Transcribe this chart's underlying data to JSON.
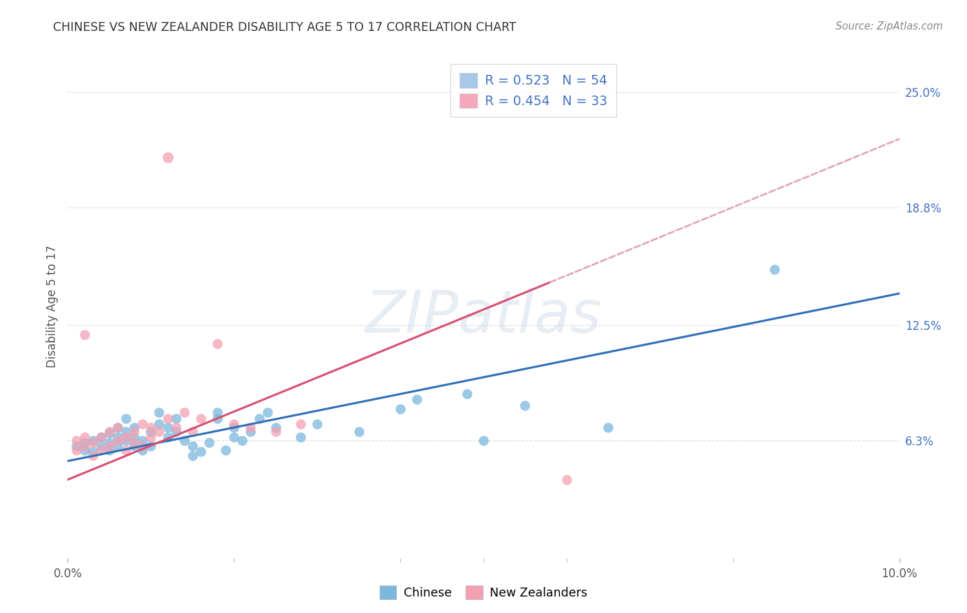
{
  "title": "CHINESE VS NEW ZEALANDER DISABILITY AGE 5 TO 17 CORRELATION CHART",
  "source": "Source: ZipAtlas.com",
  "ylabel": "Disability Age 5 to 17",
  "xlim": [
    0.0,
    0.1
  ],
  "ylim": [
    0.0,
    0.27
  ],
  "ytick_labels_right": [
    "25.0%",
    "18.8%",
    "12.5%",
    "6.3%"
  ],
  "ytick_vals_right": [
    0.25,
    0.188,
    0.125,
    0.063
  ],
  "legend_items": [
    {
      "label_r": "R = 0.523",
      "label_n": "N = 54",
      "color": "#a8c8e8"
    },
    {
      "label_r": "R = 0.454",
      "label_n": "N = 33",
      "color": "#f4a8bc"
    }
  ],
  "watermark": "ZIPatlas",
  "chinese_color": "#7ab8de",
  "nz_color": "#f4a0b0",
  "chinese_line_color": "#3070b8",
  "nz_line_color": "#d85070",
  "nz_dashed_color": "#e0a0b0",
  "grid_color": "#dddddd",
  "background_color": "#ffffff",
  "chinese_scatter": [
    [
      0.001,
      0.06
    ],
    [
      0.002,
      0.058
    ],
    [
      0.002,
      0.062
    ],
    [
      0.003,
      0.057
    ],
    [
      0.003,
      0.063
    ],
    [
      0.004,
      0.06
    ],
    [
      0.004,
      0.065
    ],
    [
      0.005,
      0.058
    ],
    [
      0.005,
      0.062
    ],
    [
      0.005,
      0.067
    ],
    [
      0.006,
      0.06
    ],
    [
      0.006,
      0.065
    ],
    [
      0.006,
      0.07
    ],
    [
      0.007,
      0.063
    ],
    [
      0.007,
      0.068
    ],
    [
      0.007,
      0.075
    ],
    [
      0.008,
      0.06
    ],
    [
      0.008,
      0.065
    ],
    [
      0.008,
      0.07
    ],
    [
      0.009,
      0.058
    ],
    [
      0.009,
      0.063
    ],
    [
      0.01,
      0.06
    ],
    [
      0.01,
      0.068
    ],
    [
      0.011,
      0.072
    ],
    [
      0.011,
      0.078
    ],
    [
      0.012,
      0.065
    ],
    [
      0.012,
      0.07
    ],
    [
      0.013,
      0.068
    ],
    [
      0.013,
      0.075
    ],
    [
      0.014,
      0.063
    ],
    [
      0.015,
      0.055
    ],
    [
      0.015,
      0.06
    ],
    [
      0.016,
      0.057
    ],
    [
      0.017,
      0.062
    ],
    [
      0.018,
      0.075
    ],
    [
      0.018,
      0.078
    ],
    [
      0.019,
      0.058
    ],
    [
      0.02,
      0.065
    ],
    [
      0.02,
      0.07
    ],
    [
      0.021,
      0.063
    ],
    [
      0.022,
      0.068
    ],
    [
      0.023,
      0.075
    ],
    [
      0.024,
      0.078
    ],
    [
      0.025,
      0.07
    ],
    [
      0.028,
      0.065
    ],
    [
      0.03,
      0.072
    ],
    [
      0.035,
      0.068
    ],
    [
      0.04,
      0.08
    ],
    [
      0.042,
      0.085
    ],
    [
      0.048,
      0.088
    ],
    [
      0.05,
      0.063
    ],
    [
      0.055,
      0.082
    ],
    [
      0.065,
      0.07
    ],
    [
      0.085,
      0.155
    ]
  ],
  "nz_scatter": [
    [
      0.001,
      0.058
    ],
    [
      0.001,
      0.063
    ],
    [
      0.002,
      0.06
    ],
    [
      0.002,
      0.065
    ],
    [
      0.003,
      0.055
    ],
    [
      0.003,
      0.062
    ],
    [
      0.004,
      0.058
    ],
    [
      0.004,
      0.065
    ],
    [
      0.005,
      0.06
    ],
    [
      0.005,
      0.068
    ],
    [
      0.006,
      0.063
    ],
    [
      0.006,
      0.07
    ],
    [
      0.007,
      0.058
    ],
    [
      0.007,
      0.065
    ],
    [
      0.008,
      0.062
    ],
    [
      0.008,
      0.068
    ],
    [
      0.009,
      0.06
    ],
    [
      0.009,
      0.072
    ],
    [
      0.01,
      0.065
    ],
    [
      0.01,
      0.07
    ],
    [
      0.011,
      0.068
    ],
    [
      0.012,
      0.075
    ],
    [
      0.013,
      0.07
    ],
    [
      0.014,
      0.078
    ],
    [
      0.015,
      0.068
    ],
    [
      0.016,
      0.075
    ],
    [
      0.018,
      0.115
    ],
    [
      0.02,
      0.072
    ],
    [
      0.022,
      0.07
    ],
    [
      0.025,
      0.068
    ],
    [
      0.028,
      0.072
    ],
    [
      0.06,
      0.042
    ],
    [
      0.002,
      0.12
    ]
  ],
  "nz_outlier": [
    0.012,
    0.215
  ],
  "blue_line": {
    "x0": 0.0,
    "y0": 0.052,
    "x1": 0.1,
    "y1": 0.142
  },
  "pink_line_solid": {
    "x0": 0.0,
    "y0": 0.042,
    "x1": 0.058,
    "y1": 0.148
  },
  "pink_line_dashed": {
    "x0": 0.058,
    "y0": 0.148,
    "x1": 0.1,
    "y1": 0.225
  }
}
